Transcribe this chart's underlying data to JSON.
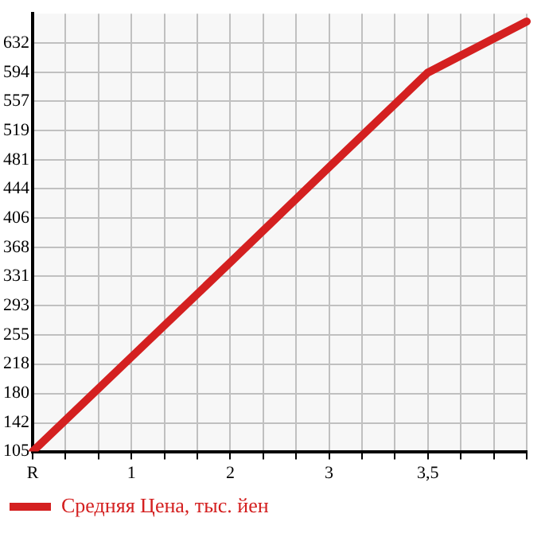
{
  "chart_data": {
    "type": "line",
    "categories": [
      "R",
      null,
      null,
      "1",
      null,
      null,
      "2",
      null,
      null,
      "3",
      null,
      null,
      "3,5",
      null,
      null,
      null
    ],
    "series": [
      {
        "name": "Средняя Цена, тыс. йен",
        "color": "#d42020",
        "values": [
          105,
          null,
          null,
          227,
          null,
          null,
          349,
          null,
          null,
          472,
          null,
          null,
          594,
          null,
          null,
          660
        ]
      }
    ],
    "ylim": [
      105,
      670
    ],
    "yticks": [
      105,
      142,
      180,
      218,
      255,
      293,
      331,
      368,
      406,
      444,
      481,
      519,
      557,
      594,
      632
    ],
    "grid": true,
    "legend": "bottom left",
    "marker": "none",
    "line_style": "solid"
  }
}
